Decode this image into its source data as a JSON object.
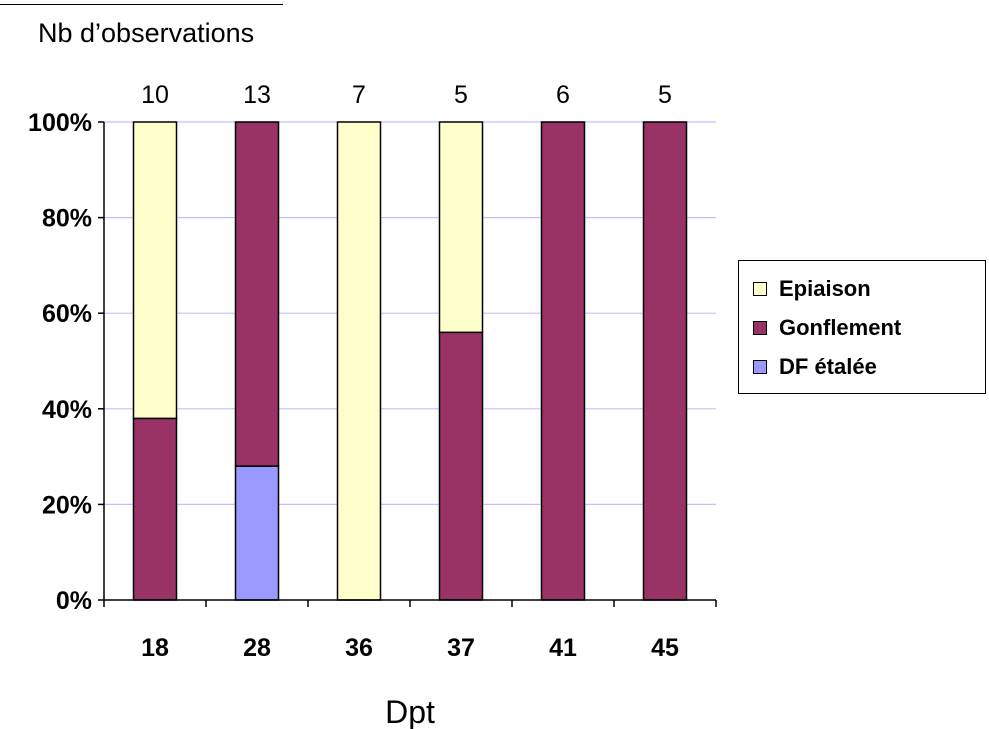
{
  "chart_data": {
    "type": "bar",
    "stacked": true,
    "normalized_percent": true,
    "title": "Nb d’observations",
    "xlabel": "Dpt",
    "ylabel": "",
    "ylim": [
      0,
      100
    ],
    "y_ticks": [
      "0%",
      "20%",
      "40%",
      "60%",
      "80%",
      "100%"
    ],
    "grid": true,
    "legend_position": "right",
    "categories": [
      "18",
      "28",
      "36",
      "37",
      "41",
      "45"
    ],
    "observation_counts": [
      "10",
      "13",
      "7",
      "5",
      "6",
      "5"
    ],
    "series": [
      {
        "name": "DF étalée",
        "color": "#9999ff",
        "values": [
          0,
          28,
          0,
          0,
          0,
          0
        ]
      },
      {
        "name": "Gonflement",
        "color": "#993366",
        "values": [
          38,
          72,
          0,
          56,
          100,
          100
        ]
      },
      {
        "name": "Epiaison",
        "color": "#ffffcc",
        "values": [
          62,
          0,
          100,
          44,
          0,
          0
        ]
      }
    ],
    "legend_order": [
      "Epiaison",
      "Gonflement",
      "DF étalée"
    ],
    "grid_color": "#c0c0ff"
  }
}
